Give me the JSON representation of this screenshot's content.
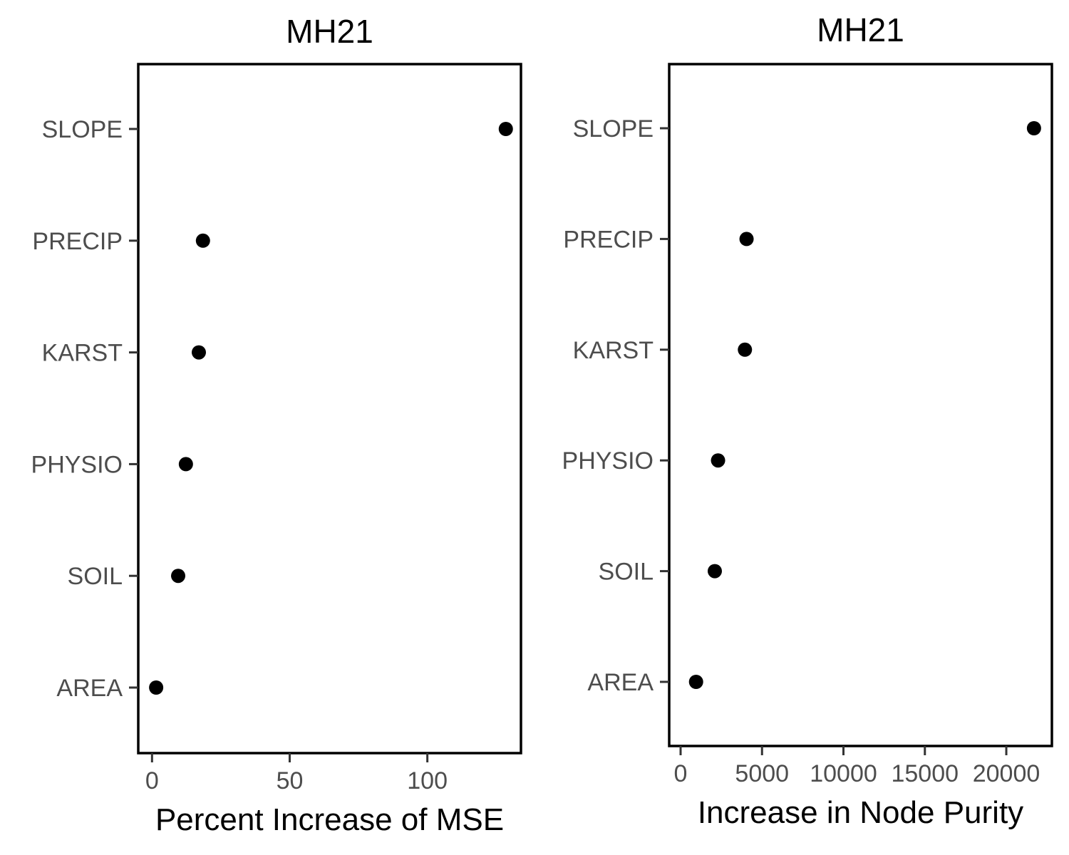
{
  "chart_data": [
    {
      "type": "scatter",
      "title": "MH21",
      "xlabel": "Percent Increase of MSE",
      "ylabel": "",
      "categories": [
        "SLOPE",
        "PRECIP",
        "KARST",
        "PHYSIO",
        "SOIL",
        "AREA"
      ],
      "values": [
        128.5,
        18.5,
        17.0,
        12.3,
        9.5,
        1.5
      ],
      "xlim": [
        -5,
        134
      ],
      "xticks": [
        0,
        50,
        100
      ],
      "xtick_labels": [
        "0",
        "50",
        "100"
      ],
      "grid": false,
      "point_color": "#000000"
    },
    {
      "type": "scatter",
      "title": "MH21",
      "xlabel": "Increase in Node Purity",
      "ylabel": "",
      "categories": [
        "SLOPE",
        "PRECIP",
        "KARST",
        "PHYSIO",
        "SOIL",
        "AREA"
      ],
      "values": [
        21700,
        4050,
        3950,
        2300,
        2100,
        950
      ],
      "xlim": [
        -700,
        22800
      ],
      "xticks": [
        0,
        5000,
        10000,
        15000,
        20000
      ],
      "xtick_labels": [
        "0",
        "5000",
        "10000",
        "15000",
        "20000"
      ],
      "grid": false,
      "point_color": "#000000"
    }
  ]
}
